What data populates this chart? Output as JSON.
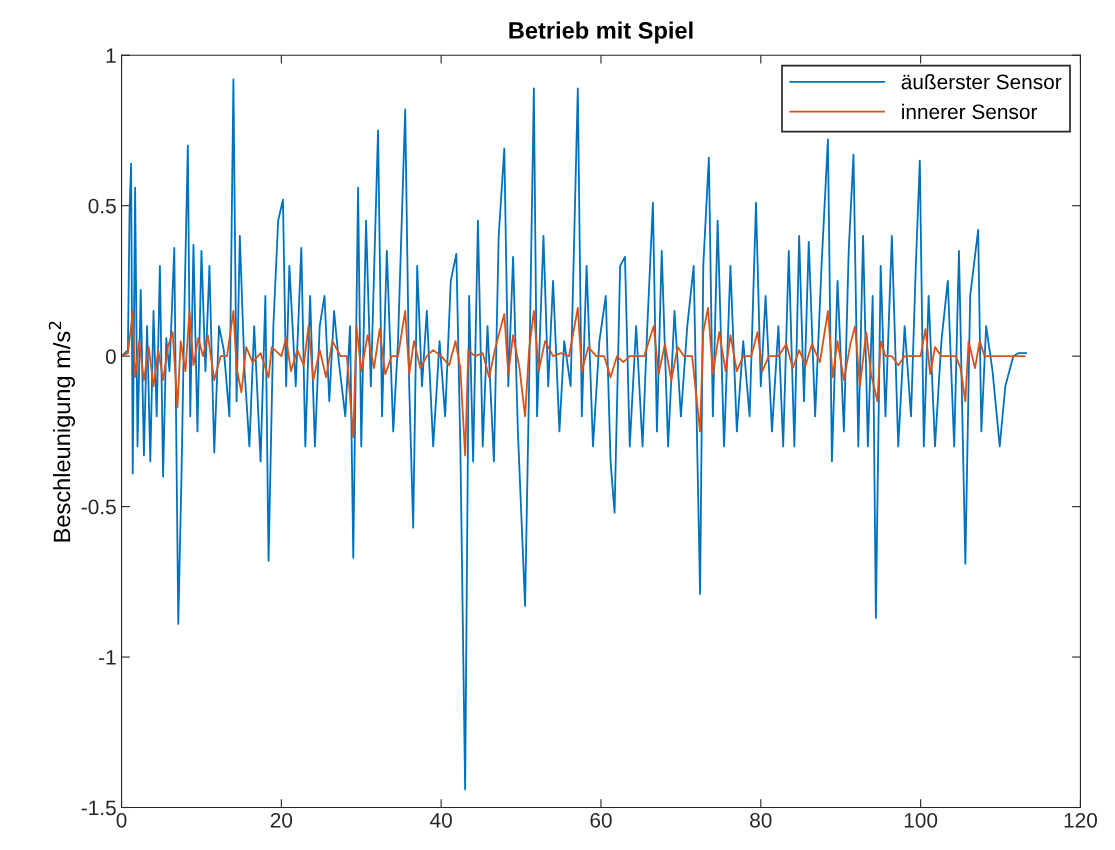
{
  "chart_data": {
    "type": "line",
    "title": "Betrieb mit Spiel",
    "ylabel": "Beschleunigung m/s$^{2}$",
    "xlim": [
      0,
      120
    ],
    "xticks": [
      0,
      20,
      40,
      60,
      80,
      100,
      120
    ],
    "ylim": [
      -1.5,
      1
    ],
    "yticks": [
      -1.5,
      -1,
      -0.5,
      0,
      0.5,
      1
    ],
    "grid": false,
    "legend": "top right",
    "line_style": "solid",
    "marker": "none",
    "series": [
      {
        "name": "äußerster Sensor",
        "color": "#0072bd",
        "x": [
          0,
          0.8,
          1.0,
          1.2,
          1.4,
          1.7,
          2.0,
          2.4,
          2.8,
          3.2,
          3.6,
          4.0,
          4.4,
          4.8,
          5.2,
          5.6,
          6.0,
          6.6,
          7.1,
          7.5,
          7.9,
          8.3,
          8.6,
          9.0,
          9.5,
          10.0,
          10.5,
          11.0,
          11.6,
          12.2,
          12.8,
          13.5,
          14.0,
          14.4,
          14.8,
          15.4,
          16.0,
          16.6,
          17.4,
          18.0,
          18.4,
          19.0,
          19.6,
          20.2,
          20.6,
          21.0,
          21.8,
          22.5,
          23.0,
          23.6,
          24.2,
          24.8,
          25.4,
          26.0,
          26.6,
          27.2,
          28.0,
          28.6,
          29.0,
          29.6,
          30.0,
          30.6,
          31.2,
          32.1,
          32.6,
          33.2,
          34.0,
          34.6,
          35.5,
          36.0,
          36.5,
          37.0,
          37.6,
          38.2,
          39.0,
          39.8,
          40.5,
          41.2,
          41.9,
          42.4,
          43.0,
          43.5,
          44.0,
          44.6,
          45.2,
          45.8,
          46.6,
          47.2,
          47.9,
          48.4,
          49.0,
          49.6,
          50.5,
          51.0,
          51.6,
          52.0,
          52.8,
          53.4,
          54.0,
          54.8,
          55.4,
          56.2,
          57.1,
          57.6,
          58.2,
          59.0,
          59.8,
          60.6,
          61.2,
          61.7,
          62.4,
          63.0,
          63.6,
          64.4,
          65.2,
          65.8,
          66.5,
          67.0,
          67.6,
          68.4,
          69.2,
          70.0,
          70.8,
          71.6,
          72.4,
          72.8,
          73.5,
          74.0,
          74.6,
          75.4,
          76.2,
          77.0,
          77.8,
          78.6,
          79.4,
          80.0,
          80.6,
          81.4,
          82.2,
          82.8,
          83.5,
          84.2,
          84.8,
          85.4,
          86.0,
          86.8,
          87.6,
          88.4,
          88.9,
          89.6,
          90.4,
          91.0,
          91.6,
          92.2,
          92.8,
          93.4,
          94.0,
          94.4,
          95.0,
          95.6,
          96.4,
          97.2,
          98.0,
          98.8,
          99.4,
          99.9,
          100.4,
          101.0,
          101.8,
          102.6,
          103.4,
          104.2,
          104.8,
          105.6,
          106.2,
          107.2,
          107.6,
          108.2,
          109.0,
          109.9,
          110.6,
          111.6,
          112.2,
          113.2
        ],
        "values": [
          0,
          0.02,
          0.48,
          0.64,
          -0.39,
          0.56,
          -0.3,
          0.22,
          -0.33,
          0.1,
          -0.35,
          0.15,
          -0.2,
          0.3,
          -0.4,
          0.06,
          -0.05,
          0.36,
          -0.89,
          -0.4,
          0.2,
          0.7,
          -0.2,
          0.37,
          -0.25,
          0.35,
          -0.05,
          0.3,
          -0.32,
          0.1,
          0.02,
          -0.2,
          0.92,
          -0.15,
          0.4,
          -0.05,
          -0.3,
          0.1,
          -0.35,
          0.2,
          -0.68,
          0.1,
          0.45,
          0.52,
          -0.1,
          0.3,
          -0.1,
          0.36,
          -0.3,
          0.2,
          -0.3,
          0.1,
          0.2,
          -0.15,
          0.15,
          -0.02,
          -0.2,
          0.1,
          -0.67,
          0.56,
          -0.3,
          0.45,
          -0.1,
          0.75,
          -0.2,
          0.35,
          -0.25,
          0.05,
          0.82,
          -0.1,
          -0.57,
          0.3,
          -0.1,
          0.15,
          -0.3,
          0.05,
          -0.2,
          0.25,
          0.34,
          -0.3,
          -1.44,
          0.2,
          -0.35,
          0.45,
          -0.3,
          0.1,
          -0.35,
          0.4,
          0.69,
          -0.1,
          0.33,
          -0.25,
          -0.83,
          -0.1,
          0.89,
          -0.2,
          0.4,
          -0.1,
          0.25,
          -0.25,
          0.05,
          -0.1,
          0.89,
          -0.2,
          0.3,
          -0.3,
          0.05,
          0.2,
          -0.35,
          -0.52,
          0.3,
          0.33,
          -0.3,
          0.1,
          -0.3,
          0.1,
          0.51,
          -0.25,
          0.35,
          -0.3,
          0.15,
          -0.2,
          0.1,
          0.3,
          -0.79,
          0.3,
          0.66,
          -0.2,
          0.45,
          -0.3,
          0.3,
          -0.25,
          0.05,
          -0.2,
          0.51,
          -0.1,
          0.2,
          -0.25,
          0.1,
          -0.3,
          0.35,
          -0.3,
          0.4,
          -0.15,
          0.38,
          -0.2,
          0.3,
          0.72,
          -0.35,
          0.25,
          -0.25,
          0.35,
          0.67,
          -0.3,
          0.4,
          -0.3,
          0.2,
          -0.87,
          0.3,
          -0.2,
          0.4,
          -0.3,
          0.1,
          -0.2,
          0.3,
          0.65,
          -0.3,
          0.2,
          -0.3,
          0.05,
          0.25,
          -0.3,
          0.35,
          -0.69,
          0.2,
          0.42,
          -0.25,
          0.1,
          -0.05,
          -0.3,
          -0.1,
          0,
          0.01,
          0.01
        ]
      },
      {
        "name": "innerer Sensor",
        "color": "#d95319",
        "x": [
          0,
          0.8,
          1.2,
          1.4,
          1.7,
          2.2,
          2.8,
          3.4,
          4.0,
          4.6,
          5.2,
          5.8,
          6.4,
          7.0,
          7.4,
          8.0,
          8.5,
          9.0,
          9.6,
          10.2,
          10.8,
          11.6,
          12.4,
          13.2,
          14.0,
          14.4,
          15.0,
          15.6,
          16.4,
          17.4,
          18.4,
          18.8,
          20.0,
          20.6,
          21.2,
          22.0,
          22.8,
          23.4,
          24.0,
          24.8,
          25.6,
          26.4,
          27.4,
          28.2,
          29.0,
          29.4,
          30.0,
          30.8,
          31.6,
          32.3,
          33.0,
          33.8,
          34.6,
          35.5,
          36.0,
          36.6,
          37.4,
          38.2,
          39.0,
          40.0,
          41.0,
          41.8,
          42.4,
          43.0,
          43.4,
          44.2,
          45.2,
          46.0,
          46.8,
          47.9,
          48.4,
          49.0,
          49.8,
          50.5,
          51.0,
          51.6,
          52.2,
          53.0,
          54.0,
          55.0,
          56.0,
          57.1,
          57.6,
          58.4,
          59.4,
          60.4,
          61.2,
          62.0,
          62.8,
          63.6,
          64.6,
          65.4,
          66.6,
          67.2,
          68.0,
          68.8,
          69.6,
          70.4,
          71.4,
          72.4,
          72.8,
          73.4,
          74.0,
          74.8,
          75.6,
          76.2,
          77.0,
          77.8,
          78.8,
          79.6,
          80.2,
          81.0,
          82.2,
          83.2,
          84.0,
          84.8,
          85.6,
          86.4,
          87.4,
          88.4,
          89.0,
          89.6,
          90.4,
          91.2,
          91.8,
          92.4,
          93.2,
          93.8,
          94.6,
          95.0,
          95.6,
          96.4,
          97.2,
          98.0,
          99.0,
          100.0,
          100.6,
          101.2,
          101.8,
          102.6,
          103.6,
          104.4,
          105.0,
          105.6,
          106.0,
          106.8,
          107.4,
          108.0,
          110.0,
          113.0
        ],
        "values": [
          0,
          0.01,
          0.1,
          0.15,
          -0.07,
          0.05,
          -0.08,
          0.03,
          -0.1,
          0.02,
          -0.08,
          0.03,
          0.08,
          -0.17,
          0.05,
          -0.05,
          0.15,
          -0.03,
          0.06,
          0,
          0.07,
          -0.08,
          0,
          0,
          0.15,
          -0.04,
          -0.12,
          0.03,
          -0.02,
          0.01,
          -0.07,
          0.03,
          0,
          0.06,
          -0.05,
          0.02,
          -0.03,
          0.1,
          -0.08,
          0.02,
          -0.07,
          0.05,
          0,
          0,
          -0.27,
          0.1,
          -0.05,
          0.07,
          -0.04,
          0.09,
          -0.06,
          0,
          0,
          0.15,
          -0.06,
          0.05,
          -0.04,
          0,
          0.02,
          0,
          -0.03,
          0.05,
          -0.04,
          -0.33,
          0.02,
          0,
          0.01,
          -0.07,
          0.03,
          0.14,
          -0.06,
          0.07,
          -0.04,
          -0.2,
          0.02,
          0.15,
          -0.05,
          0.05,
          0,
          0.01,
          0,
          0.16,
          -0.05,
          0.03,
          0,
          0,
          -0.07,
          0,
          -0.02,
          0,
          0,
          0,
          0.1,
          -0.06,
          0.04,
          -0.08,
          0.03,
          0,
          0,
          -0.25,
          0.08,
          0.16,
          -0.06,
          0.08,
          -0.05,
          0.07,
          -0.05,
          0,
          0,
          0.08,
          -0.05,
          0,
          0,
          0.04,
          -0.04,
          0.02,
          -0.03,
          0.04,
          -0.02,
          0.15,
          -0.07,
          0.05,
          -0.08,
          0.04,
          0.1,
          -0.1,
          0.08,
          -0.06,
          -0.15,
          0.05,
          0,
          0,
          -0.03,
          0,
          0,
          0,
          0.09,
          -0.06,
          0.03,
          0,
          0,
          0,
          -0.04,
          -0.15,
          0.05,
          -0.04,
          0.05,
          0,
          0,
          0
        ]
      }
    ]
  }
}
